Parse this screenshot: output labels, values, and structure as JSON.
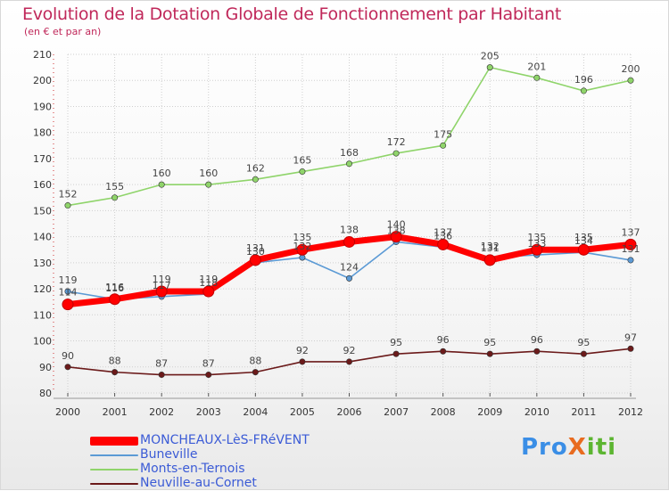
{
  "header": {
    "title": "Evolution de la Dotation Globale de Fonctionnement par Habitant",
    "subtitle": "(en € et par an)"
  },
  "logo": {
    "text": "ProXiti",
    "p1": "Pro",
    "p2": "X",
    "p3": "iti"
  },
  "chart_data": {
    "type": "line",
    "title": "Evolution de la Dotation Globale de Fonctionnement par Habitant",
    "subtitle": "(en € et par an)",
    "xlabel": "",
    "ylabel": "",
    "ylim": [
      80,
      210
    ],
    "yticks": [
      80,
      90,
      100,
      110,
      120,
      130,
      140,
      150,
      160,
      170,
      180,
      190,
      200,
      210
    ],
    "grid": true,
    "legend_position": "bottom-left",
    "x": [
      "2000",
      "2001",
      "2002",
      "2003",
      "2004",
      "2005",
      "2006",
      "2007",
      "2008",
      "2009",
      "2010",
      "2011",
      "2012"
    ],
    "series": [
      {
        "name": "Neuville-au-Cornet",
        "color": "#6b1a1a",
        "values": [
          90,
          88,
          87,
          87,
          88,
          92,
          92,
          95,
          96,
          95,
          96,
          95,
          97
        ]
      },
      {
        "name": "Monts-en-Ternois",
        "color": "#8fd46a",
        "values": [
          152,
          155,
          160,
          160,
          162,
          165,
          168,
          172,
          175,
          205,
          201,
          196,
          200
        ]
      },
      {
        "name": "Buneville",
        "color": "#5b9ad5",
        "values": [
          119,
          116,
          117,
          118,
          130,
          132,
          124,
          138,
          136,
          132,
          133,
          134,
          131
        ]
      },
      {
        "name": "MONCHEAUX-LèS-FRéVENT",
        "color": "#ff0000",
        "values": [
          114,
          116,
          119,
          119,
          131,
          135,
          138,
          140,
          137,
          131,
          135,
          135,
          137
        ]
      }
    ]
  }
}
